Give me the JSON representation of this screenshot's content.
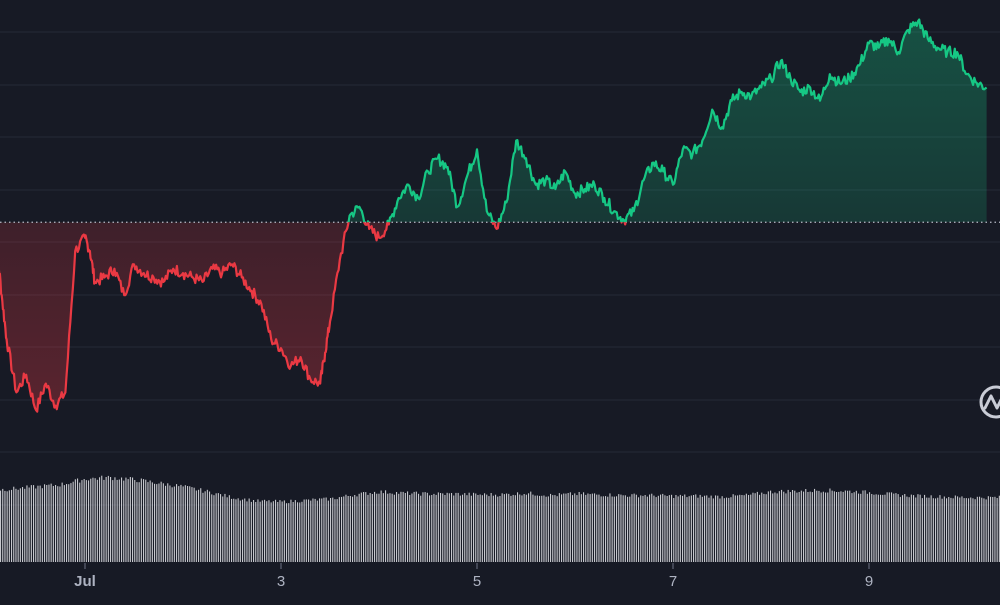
{
  "chart_data": {
    "type": "line",
    "title": "",
    "xlabel": "",
    "ylabel": "",
    "x_tick_labels": [
      "Jul",
      "3",
      "5",
      "7",
      "9"
    ],
    "x_tick_days": [
      1,
      3,
      5,
      7,
      9
    ],
    "x_range_days": [
      0.0,
      10.2
    ],
    "y_range": [
      0,
      100
    ],
    "baseline": 56.5,
    "grid": true,
    "legend": "none",
    "colors": {
      "background": "#171a25",
      "grid": "#262a38",
      "up_line": "#16c784",
      "down_line": "#ea3943",
      "baseline": "#b8bcc8",
      "volume": "#e6e8ec",
      "axis_text": "#aeb3c2",
      "logo": "#c9ccd6"
    },
    "price": {
      "x": [
        0.0,
        0.1,
        0.15,
        0.2,
        0.3,
        0.4,
        0.5,
        0.6,
        0.7,
        0.8,
        0.9,
        1.0,
        1.05,
        1.1,
        1.2,
        1.3,
        1.4,
        1.5,
        1.6,
        1.7,
        1.8,
        1.9,
        2.0,
        2.1,
        2.2,
        2.3,
        2.4,
        2.5,
        2.6,
        2.7,
        2.8,
        2.9,
        3.0,
        3.1,
        3.2,
        3.3,
        3.4,
        3.45,
        3.5,
        3.6,
        3.7,
        3.8,
        3.9,
        4.0,
        4.1,
        4.2,
        4.3,
        4.4,
        4.5,
        4.6,
        4.7,
        4.8,
        4.9,
        5.0,
        5.1,
        5.2,
        5.3,
        5.4,
        5.5,
        5.6,
        5.7,
        5.8,
        5.9,
        6.0,
        6.1,
        6.2,
        6.3,
        6.4,
        6.5,
        6.6,
        6.7,
        6.8,
        6.9,
        7.0,
        7.1,
        7.2,
        7.3,
        7.4,
        7.5,
        7.6,
        7.7,
        7.8,
        7.9,
        8.0,
        8.1,
        8.2,
        8.3,
        8.4,
        8.5,
        8.6,
        8.7,
        8.8,
        8.9,
        9.0,
        9.1,
        9.2,
        9.3,
        9.4,
        9.5,
        9.6,
        9.7,
        9.8,
        9.9,
        10.0,
        10.1,
        10.2
      ],
      "y": [
        46,
        51,
        40,
        30,
        18,
        22,
        14,
        20,
        15,
        18,
        50,
        53,
        50,
        43,
        44,
        46,
        40,
        47,
        45,
        44,
        43,
        46,
        45,
        44,
        43,
        46,
        45,
        47,
        44,
        41,
        38,
        30,
        28,
        24,
        26,
        21,
        20,
        27,
        34,
        48,
        58,
        60,
        55,
        53,
        56,
        62,
        65,
        62,
        68,
        71,
        69,
        60,
        67,
        73,
        59,
        55,
        61,
        75,
        71,
        65,
        66,
        64,
        68,
        63,
        64,
        65,
        62,
        59,
        57,
        59,
        66,
        70,
        68,
        65,
        73,
        72,
        75,
        82,
        78,
        84,
        86,
        85,
        87,
        89,
        93,
        89,
        86,
        87,
        84,
        90,
        88,
        89,
        92,
        97,
        96,
        98,
        95,
        100,
        102,
        98,
        96,
        95,
        95,
        90,
        88,
        87
      ]
    },
    "volume": {
      "x": [
        0.0,
        0.25,
        0.5,
        0.75,
        1.0,
        1.25,
        1.5,
        1.75,
        2.0,
        2.25,
        2.5,
        2.75,
        3.0,
        3.25,
        3.5,
        3.75,
        4.0,
        4.25,
        4.5,
        4.75,
        5.0,
        5.25,
        5.5,
        5.75,
        6.0,
        6.25,
        6.5,
        6.75,
        7.0,
        7.25,
        7.5,
        7.75,
        8.0,
        8.25,
        8.5,
        8.75,
        9.0,
        9.25,
        9.5,
        9.75,
        10.0,
        10.2
      ],
      "v": [
        100,
        102,
        105,
        108,
        116,
        118,
        115,
        110,
        105,
        98,
        90,
        85,
        84,
        86,
        88,
        94,
        98,
        96,
        95,
        95,
        94,
        94,
        96,
        93,
        95,
        94,
        93,
        93,
        92,
        92,
        91,
        93,
        98,
        99,
        100,
        99,
        97,
        94,
        92,
        91,
        90,
        90
      ],
      "max": 120
    }
  }
}
